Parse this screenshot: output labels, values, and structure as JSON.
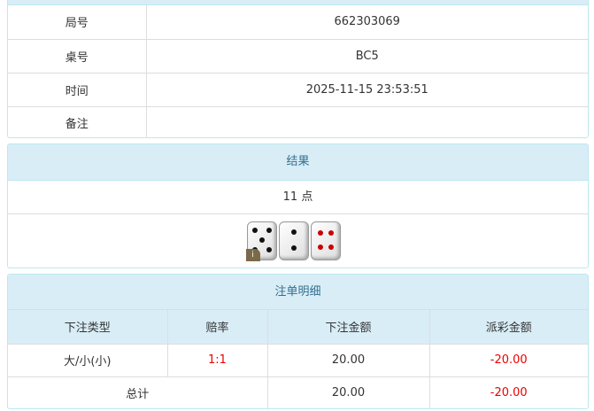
{
  "info": {
    "rows": [
      {
        "label": "局号",
        "value": "662303069"
      },
      {
        "label": "桌号",
        "value": "BC5"
      },
      {
        "label": "时间",
        "value": "2025-11-15 23:53:51"
      },
      {
        "label": "备注",
        "value": ""
      }
    ]
  },
  "result": {
    "title": "结果",
    "points": "11 点",
    "dice": [
      5,
      2,
      4
    ]
  },
  "bets": {
    "title": "注单明细",
    "headers": [
      "下注类型",
      "赔率",
      "下注金额",
      "派彩金额"
    ],
    "rows": [
      {
        "type": "大/小(小)",
        "odds": "1:1",
        "amount": "20.00",
        "payout": "-20.00"
      }
    ],
    "total": {
      "label": "总计",
      "amount": "20.00",
      "payout": "-20.00"
    }
  },
  "colors": {
    "header_bg": "#d9edf7",
    "header_text": "#31708f",
    "negative": "#ee0000"
  }
}
